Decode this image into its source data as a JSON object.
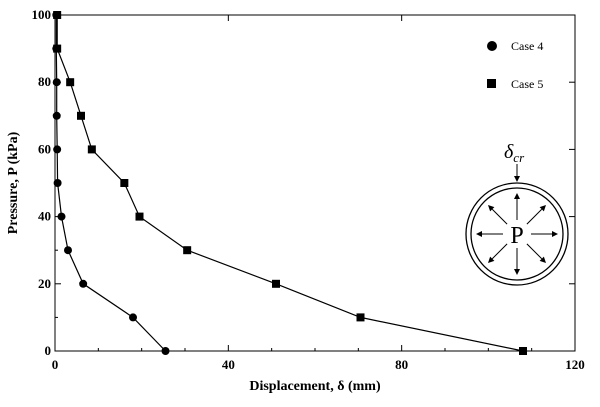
{
  "chart_data": {
    "type": "line",
    "title": "",
    "xlabel": "Displacement, δ (mm)",
    "ylabel": "Pressure, P (kPa)",
    "xlim": [
      0,
      120
    ],
    "ylim": [
      0,
      100
    ],
    "xticks": [
      0,
      40,
      80,
      120
    ],
    "yticks": [
      0,
      20,
      40,
      60,
      80,
      100
    ],
    "grid": false,
    "legend_position": "top-right",
    "series": [
      {
        "name": "Case 4",
        "marker": "circle",
        "color": "#000000",
        "points": [
          [
            25.5,
            0
          ],
          [
            18,
            10
          ],
          [
            6.5,
            20
          ],
          [
            3,
            30
          ],
          [
            1.5,
            40
          ],
          [
            0.6,
            50
          ],
          [
            0.5,
            60
          ],
          [
            0.4,
            70
          ],
          [
            0.4,
            80
          ],
          [
            0.3,
            90
          ],
          [
            0.3,
            100
          ]
        ]
      },
      {
        "name": "Case 5",
        "marker": "square",
        "color": "#000000",
        "points": [
          [
            108,
            0
          ],
          [
            70.5,
            10
          ],
          [
            51,
            20
          ],
          [
            30.5,
            30
          ],
          [
            19.5,
            40
          ],
          [
            16,
            50
          ],
          [
            8.5,
            60
          ],
          [
            6,
            70
          ],
          [
            3.5,
            80
          ],
          [
            0.5,
            90
          ],
          [
            0.5,
            100
          ]
        ]
      }
    ],
    "inset": {
      "center_label": "P",
      "top_label": "δ",
      "top_label_sub": "cr"
    }
  }
}
